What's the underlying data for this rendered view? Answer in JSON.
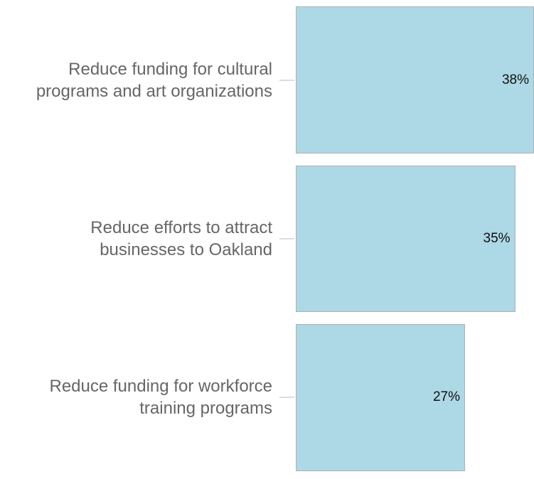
{
  "chart_data": {
    "type": "bar",
    "orientation": "horizontal",
    "categories": [
      "Reduce funding for cultural programs and art organizations",
      "Reduce efforts to attract businesses to Oakland",
      "Reduce funding for workforce training programs"
    ],
    "values": [
      38,
      35,
      27
    ],
    "value_labels": [
      "38%",
      "35%",
      "27%"
    ],
    "color": "#add8e6",
    "xlim": [
      0,
      38
    ]
  }
}
